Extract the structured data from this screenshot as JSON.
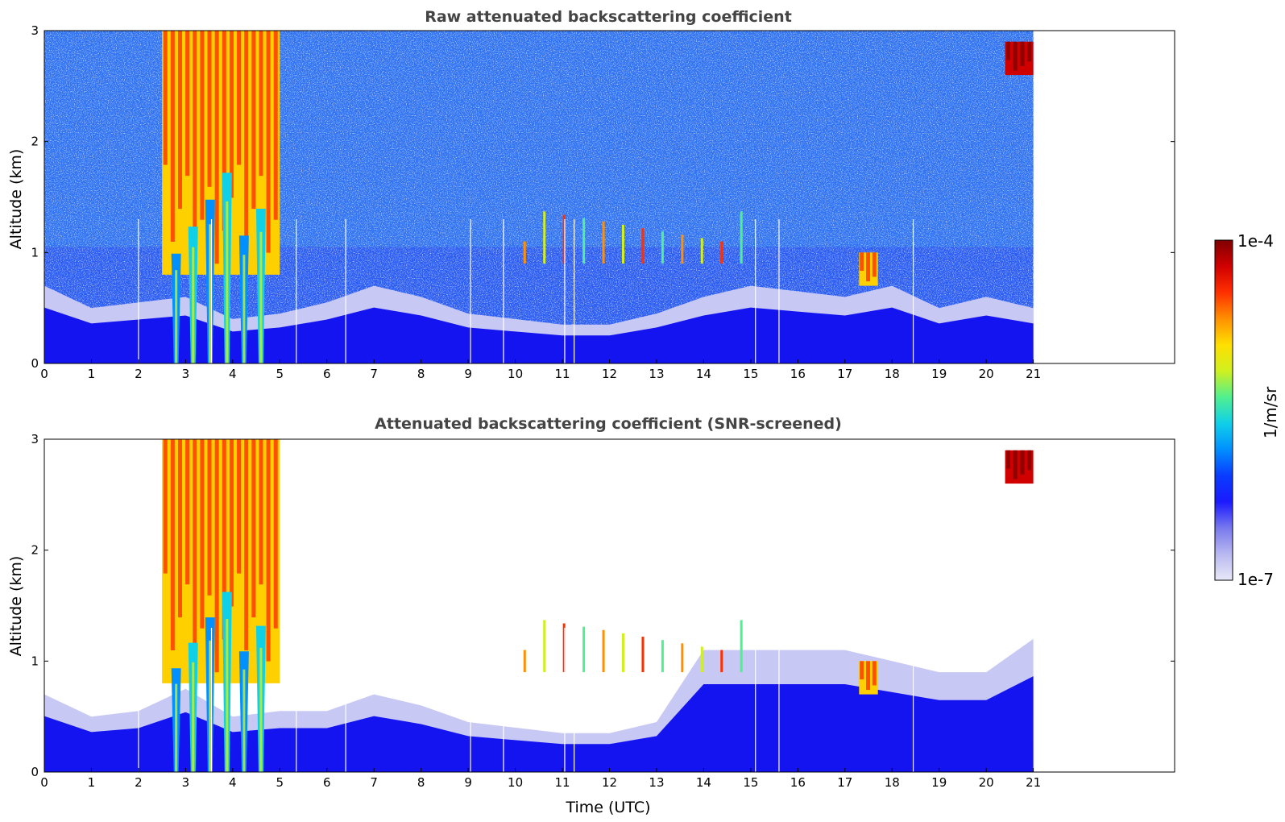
{
  "chart_data": [
    {
      "type": "heatmap",
      "title": "Raw attenuated backscattering coefficient",
      "xlabel": "",
      "ylabel": "Altitude (km)",
      "x_ticks": [
        "0",
        "1",
        "2",
        "3",
        "4",
        "5",
        "6",
        "7",
        "8",
        "9",
        "10",
        "11",
        "12",
        "13",
        "14",
        "15",
        "16",
        "17",
        "18",
        "19",
        "20",
        "21"
      ],
      "y_ticks": [
        "0",
        "1",
        "2",
        "3"
      ],
      "xlim": [
        0,
        24
      ],
      "ylim": [
        0,
        3
      ],
      "data_end_hour": 21,
      "x_units": "hours UTC",
      "y_units": "km",
      "features": [
        {
          "feature": "boundary layer",
          "start_hour": 0,
          "end_hour": 21,
          "top_km": [
            0.7,
            0.5,
            0.55,
            0.6,
            0.4,
            0.45,
            0.55,
            0.7,
            0.6,
            0.45,
            0.4,
            0.35,
            0.35,
            0.45,
            0.6,
            0.7,
            0.65,
            0.6,
            0.7,
            0.5,
            0.6,
            0.5
          ]
        },
        {
          "feature": "cloud",
          "start_hour": 2.5,
          "end_hour": 5.0,
          "base_km": 0.8,
          "top_km": 3.0,
          "intensity": "high"
        },
        {
          "feature": "precipitation streaks",
          "start_hour": 2.8,
          "end_hour": 4.6,
          "base_km": 0.0,
          "top_km": 1.8
        },
        {
          "feature": "isolated cloud",
          "start_hour": 10.2,
          "end_hour": 14.8,
          "base_km": 0.9,
          "top_km": 1.4
        },
        {
          "feature": "cloud",
          "start_hour": 17.3,
          "end_hour": 17.7,
          "base_km": 0.7,
          "top_km": 1.0,
          "intensity": "high"
        },
        {
          "feature": "cloud",
          "start_hour": 20.4,
          "end_hour": 21.0,
          "base_km": 2.6,
          "top_km": 2.9,
          "intensity": "very high"
        }
      ],
      "missing_profile_hours": [
        2.0,
        3.55,
        5.35,
        6.4,
        9.05,
        9.75,
        11.05,
        11.25,
        15.1,
        15.6,
        18.45
      ]
    },
    {
      "type": "heatmap",
      "title": "Attenuated backscattering coefficient (SNR-screened)",
      "xlabel": "Time (UTC)",
      "ylabel": "Altitude (km)",
      "x_ticks": [
        "0",
        "1",
        "2",
        "3",
        "4",
        "5",
        "6",
        "7",
        "8",
        "9",
        "10",
        "11",
        "12",
        "13",
        "14",
        "15",
        "16",
        "17",
        "18",
        "19",
        "20",
        "21"
      ],
      "y_ticks": [
        "0",
        "1",
        "2",
        "3"
      ],
      "xlim": [
        0,
        24
      ],
      "ylim": [
        0,
        3
      ],
      "data_end_hour": 21,
      "x_units": "hours UTC",
      "y_units": "km",
      "features": [
        {
          "feature": "boundary layer",
          "start_hour": 0,
          "end_hour": 21,
          "top_km": [
            0.7,
            0.5,
            0.55,
            0.75,
            0.5,
            0.55,
            0.55,
            0.7,
            0.6,
            0.45,
            0.4,
            0.35,
            0.35,
            0.45,
            1.1,
            1.1,
            1.1,
            1.1,
            1.0,
            0.9,
            0.9,
            1.2
          ]
        },
        {
          "feature": "cloud",
          "start_hour": 2.5,
          "end_hour": 5.0,
          "base_km": 0.8,
          "top_km": 3.0,
          "intensity": "high"
        },
        {
          "feature": "precipitation streaks",
          "start_hour": 2.8,
          "end_hour": 4.6,
          "base_km": 0.0,
          "top_km": 1.7
        },
        {
          "feature": "isolated cloud",
          "start_hour": 10.2,
          "end_hour": 14.8,
          "base_km": 0.9,
          "top_km": 1.4
        },
        {
          "feature": "cloud",
          "start_hour": 17.3,
          "end_hour": 17.7,
          "base_km": 0.7,
          "top_km": 1.0,
          "intensity": "high"
        },
        {
          "feature": "cloud",
          "start_hour": 20.4,
          "end_hour": 21.0,
          "base_km": 2.6,
          "top_km": 2.9,
          "intensity": "very high"
        }
      ],
      "missing_profile_hours": [
        2.0,
        3.55,
        5.35,
        6.4,
        9.05,
        9.75,
        11.05,
        11.25,
        15.1,
        15.6,
        18.45
      ]
    }
  ],
  "colorbar": {
    "label": "1/m/sr",
    "max_label": "1e-4",
    "min_label": "1e-7",
    "scale": "log",
    "colors": [
      "#e8e8f8",
      "#b8b8f0",
      "#7878ee",
      "#1a1aff",
      "#0a3cff",
      "#0090ff",
      "#10d0e8",
      "#50f090",
      "#d0f020",
      "#ffe000",
      "#ff9000",
      "#ff3000",
      "#d00000",
      "#800000"
    ]
  }
}
